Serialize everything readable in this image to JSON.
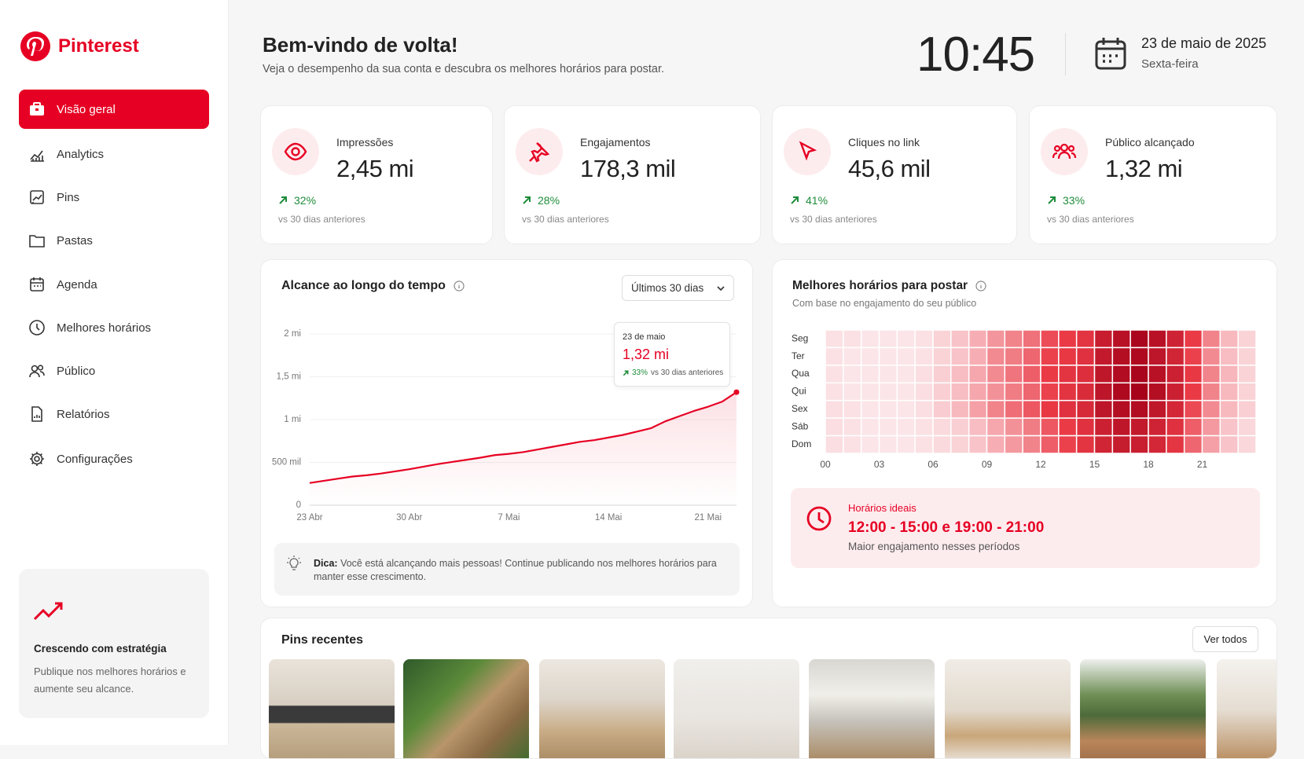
{
  "sidebar": {
    "brand": "Pinterest",
    "nav": [
      "Visão geral",
      "Analytics",
      "Pins",
      "Pastas",
      "Agenda",
      "Melhores horários",
      "Público",
      "Relatórios",
      "Configurações"
    ],
    "promo": {
      "title": "Crescendo com estratégia",
      "text": "Publique nos melhores horários e aumente seu alcance."
    }
  },
  "header": {
    "title": "Bem-vindo de volta!",
    "subtitle": "Veja o desempenho da sua conta e descubra os melhores horários para postar.",
    "time": "10:45",
    "date": "23 de maio de 2025",
    "weekday": "Sexta-feira"
  },
  "kpis": [
    {
      "label": "Impressões",
      "value": "2,45 mi",
      "change": "32%",
      "note": "vs 30 dias anteriores"
    },
    {
      "label": "Engajamentos",
      "value": "178,3 mil",
      "change": "28%",
      "note": "vs 30 dias anteriores"
    },
    {
      "label": "Cliques no link",
      "value": "45,6 mil",
      "change": "41%",
      "note": "vs 30 dias anteriores"
    },
    {
      "label": "Público alcançado",
      "value": "1,32 mi",
      "change": "33%",
      "note": "vs 30 dias anteriores"
    }
  ],
  "reach": {
    "title": "Alcance ao longo do tempo",
    "range": "Últimos 30 dias",
    "tooltip": {
      "date": "23 de maio",
      "value": "1,32 mi",
      "change": "33%",
      "note": "vs 30 dias anteriores"
    },
    "tip": {
      "label": "Dica:",
      "text": "Você está alcançando mais pessoas! Continue publicando nos melhores horários para manter esse crescimento."
    }
  },
  "best_times": {
    "title": "Melhores horários para postar",
    "subtitle": "Com base no engajamento do seu público",
    "ideal": {
      "label": "Horários ideais",
      "hours": "12:00 - 15:00 e 19:00 - 21:00",
      "note": "Maior engajamento nesses períodos"
    }
  },
  "recent_pins": {
    "title": "Pins recentes",
    "button": "Ver todos"
  },
  "chart_data": [
    {
      "type": "line",
      "categories": [
        "23 Abr",
        null,
        null,
        null,
        null,
        null,
        null,
        "30 Abr",
        null,
        null,
        null,
        null,
        null,
        null,
        "7 Mai",
        null,
        null,
        null,
        null,
        null,
        null,
        "14 Mai",
        null,
        null,
        null,
        null,
        null,
        null,
        "21 Mai",
        null,
        null
      ],
      "series": [
        {
          "color": "#e60023",
          "values": [
            260000,
            285000,
            310000,
            335000,
            350000,
            370000,
            395000,
            420000,
            450000,
            480000,
            505000,
            530000,
            555000,
            585000,
            600000,
            620000,
            650000,
            680000,
            710000,
            740000,
            760000,
            790000,
            820000,
            860000,
            900000,
            980000,
            1040000,
            1100000,
            1150000,
            1210000,
            1320000
          ]
        }
      ],
      "ylim": [
        0,
        2000000
      ],
      "yticks": [
        0,
        {
          "value": 500000,
          "label": "500 mil"
        },
        {
          "value": 1000000,
          "label": "1 mi"
        },
        {
          "value": 1500000,
          "label": "1,5 mi"
        },
        {
          "value": 2000000,
          "label": "2 mi"
        }
      ],
      "grid": true,
      "area": true
    },
    {
      "type": "heatmap",
      "rows": [
        "Seg",
        "Ter",
        "Qua",
        "Qui",
        "Sex",
        "Sáb",
        "Dom"
      ],
      "columns": [
        "00",
        null,
        null,
        "03",
        null,
        null,
        "06",
        null,
        null,
        "09",
        null,
        null,
        "12",
        null,
        null,
        "15",
        null,
        null,
        "18",
        null,
        null,
        "21",
        null,
        null
      ],
      "values": [
        [
          4,
          4,
          3,
          3,
          3,
          4,
          8,
          12,
          18,
          25,
          30,
          35,
          45,
          50,
          55,
          75,
          85,
          95,
          85,
          70,
          50,
          30,
          15,
          8
        ],
        [
          4,
          3,
          3,
          3,
          3,
          4,
          8,
          12,
          18,
          28,
          32,
          38,
          48,
          52,
          58,
          78,
          88,
          92,
          82,
          68,
          48,
          28,
          14,
          8
        ],
        [
          4,
          3,
          3,
          3,
          3,
          5,
          9,
          14,
          20,
          28,
          34,
          40,
          50,
          55,
          60,
          80,
          90,
          96,
          85,
          72,
          52,
          30,
          16,
          8
        ],
        [
          4,
          3,
          3,
          3,
          3,
          5,
          9,
          14,
          20,
          26,
          32,
          38,
          48,
          55,
          62,
          82,
          92,
          98,
          88,
          72,
          50,
          30,
          15,
          8
        ],
        [
          5,
          4,
          3,
          3,
          3,
          5,
          10,
          15,
          22,
          30,
          36,
          42,
          52,
          58,
          64,
          82,
          88,
          90,
          80,
          66,
          46,
          28,
          15,
          9
        ],
        [
          5,
          4,
          3,
          3,
          3,
          4,
          6,
          9,
          14,
          20,
          26,
          32,
          42,
          50,
          58,
          72,
          80,
          78,
          70,
          58,
          40,
          24,
          12,
          7
        ],
        [
          5,
          4,
          3,
          3,
          3,
          4,
          6,
          8,
          12,
          18,
          24,
          30,
          40,
          48,
          55,
          68,
          76,
          74,
          66,
          54,
          38,
          22,
          12,
          7
        ]
      ],
      "zlim": [
        0,
        100
      ],
      "colors": [
        "#fcf0f2",
        "#ea3a46",
        "#a30018"
      ]
    }
  ]
}
